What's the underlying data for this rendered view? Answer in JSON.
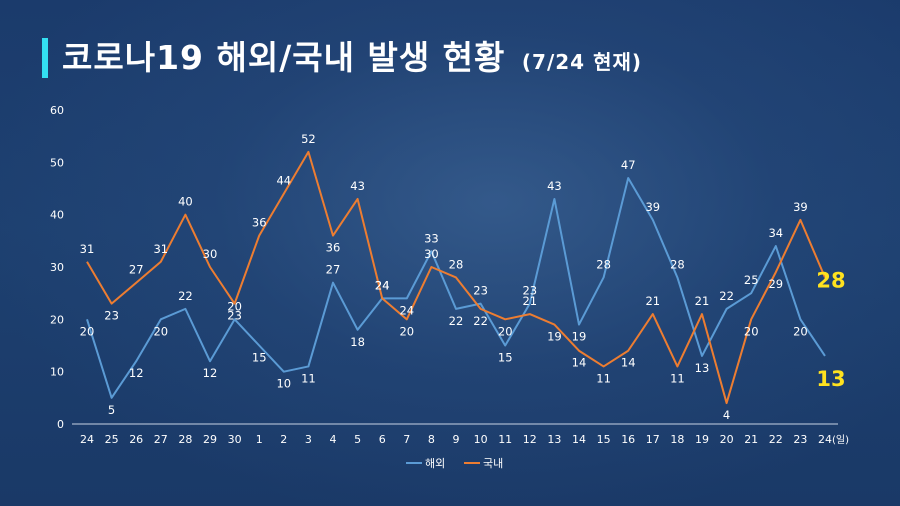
{
  "header": {
    "title": "코로나19 해외/국내 발생 현황",
    "subtitle": "(7/24 현재)"
  },
  "colors": {
    "title_bar": "#33e0f2",
    "overseas": "#5b9bd5",
    "domestic": "#ed7d31",
    "highlight": "#ffe21f"
  },
  "chart_data": {
    "type": "line",
    "x": [
      "24",
      "25",
      "26",
      "27",
      "28",
      "29",
      "30",
      "1",
      "2",
      "3",
      "4",
      "5",
      "6",
      "7",
      "8",
      "9",
      "10",
      "11",
      "12",
      "13",
      "14",
      "15",
      "16",
      "17",
      "18",
      "19",
      "20",
      "21",
      "22",
      "23",
      "24"
    ],
    "x_unit": "(일)",
    "ylim": [
      0,
      60
    ],
    "yticks": [
      0,
      10,
      20,
      30,
      40,
      50,
      60
    ],
    "grid": false,
    "legend_position": "bottom",
    "series": [
      {
        "name": "해외",
        "color": "#5b9bd5",
        "values": [
          20,
          5,
          12,
          20,
          22,
          12,
          20,
          15,
          10,
          11,
          27,
          18,
          24,
          24,
          33,
          22,
          23,
          15,
          23,
          43,
          19,
          28,
          47,
          39,
          28,
          13,
          22,
          25,
          34,
          20,
          13
        ]
      },
      {
        "name": "국내",
        "color": "#ed7d31",
        "values": [
          31,
          23,
          27,
          31,
          40,
          30,
          23,
          36,
          44,
          52,
          36,
          43,
          24,
          20,
          30,
          28,
          22,
          20,
          21,
          19,
          14,
          11,
          14,
          21,
          11,
          21,
          4,
          20,
          29,
          39,
          28
        ]
      }
    ]
  }
}
